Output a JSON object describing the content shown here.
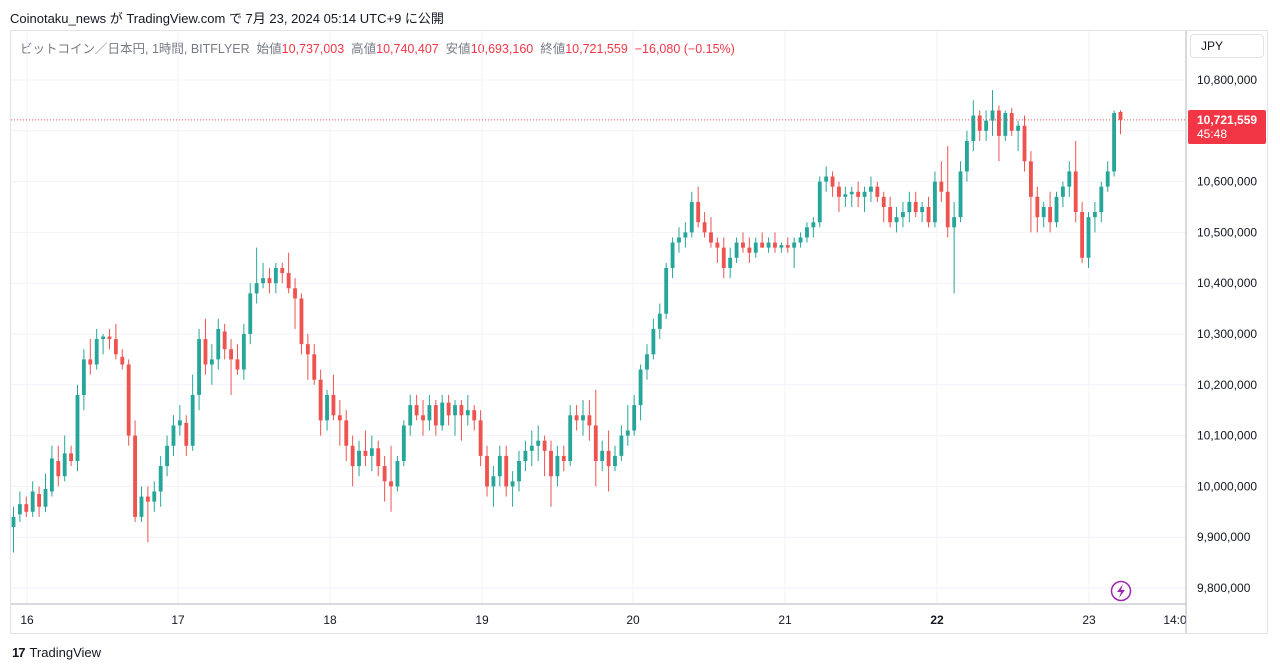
{
  "header": {
    "publish_line": "Coinotaku_news が TradingView.com で 7月 23, 2024 05:14 UTC+9 に公開"
  },
  "legend": {
    "symbol": "ビットコイン／日本円, 1時間, BITFLYER",
    "open_label": "始値",
    "open": "10,737,003",
    "high_label": "高値",
    "high": "10,740,407",
    "low_label": "安値",
    "low": "10,693,160",
    "close_label": "終値",
    "close": "10,721,559",
    "change": "−16,080 (−0.15%)"
  },
  "currency": "JPY",
  "last_price": {
    "price": "10,721,559",
    "countdown": "45:48"
  },
  "footer": {
    "logo": "17",
    "brand": "TradingView"
  },
  "colors": {
    "up": "#26a69a",
    "down": "#ef5350",
    "grid": "#f0f3fa",
    "text": "#131722",
    "accent": "#9c27b0"
  },
  "lightning_icon": "lightning-icon",
  "chart_data": {
    "type": "candlestick",
    "ylim": [
      9750000,
      10840000
    ],
    "yticks": [
      "9,800,000",
      "9,900,000",
      "10,000,000",
      "10,100,000",
      "10,200,000",
      "10,300,000",
      "10,400,000",
      "10,500,000",
      "10,600,000",
      "10,700,000",
      "10,800,000"
    ],
    "xticks": [
      "16",
      "17",
      "18",
      "19",
      "20",
      "21",
      "22",
      "23",
      "14:0"
    ],
    "last_price": 10721559,
    "candles": [
      [
        9920000,
        9960000,
        9870000,
        9940000
      ],
      [
        9945000,
        9990000,
        9930000,
        9965000
      ],
      [
        9965000,
        9980000,
        9940000,
        9950000
      ],
      [
        9950000,
        10010000,
        9940000,
        9990000
      ],
      [
        9985000,
        10000000,
        9940000,
        9960000
      ],
      [
        9960000,
        10025000,
        9950000,
        9995000
      ],
      [
        9990000,
        10080000,
        9980000,
        10055000
      ],
      [
        10050000,
        10080000,
        10000000,
        10020000
      ],
      [
        10020000,
        10100000,
        10010000,
        10065000
      ],
      [
        10065000,
        10080000,
        10040000,
        10050000
      ],
      [
        10050000,
        10200000,
        10030000,
        10180000
      ],
      [
        10180000,
        10270000,
        10150000,
        10250000
      ],
      [
        10250000,
        10290000,
        10220000,
        10240000
      ],
      [
        10240000,
        10310000,
        10230000,
        10290000
      ],
      [
        10290000,
        10300000,
        10260000,
        10295000
      ],
      [
        10295000,
        10310000,
        10270000,
        10290000
      ],
      [
        10290000,
        10320000,
        10250000,
        10260000
      ],
      [
        10255000,
        10270000,
        10230000,
        10240000
      ],
      [
        10240000,
        10250000,
        10080000,
        10100000
      ],
      [
        10100000,
        10130000,
        9930000,
        9940000
      ],
      [
        9940000,
        10000000,
        9930000,
        9980000
      ],
      [
        9980000,
        10000000,
        9890000,
        9970000
      ],
      [
        9970000,
        10010000,
        9950000,
        9990000
      ],
      [
        9990000,
        10060000,
        9960000,
        10040000
      ],
      [
        10040000,
        10100000,
        10020000,
        10080000
      ],
      [
        10080000,
        10140000,
        10060000,
        10120000
      ],
      [
        10120000,
        10160000,
        10100000,
        10130000
      ],
      [
        10125000,
        10140000,
        10060000,
        10080000
      ],
      [
        10080000,
        10220000,
        10070000,
        10180000
      ],
      [
        10180000,
        10310000,
        10150000,
        10290000
      ],
      [
        10290000,
        10330000,
        10220000,
        10240000
      ],
      [
        10240000,
        10280000,
        10200000,
        10250000
      ],
      [
        10250000,
        10330000,
        10230000,
        10310000
      ],
      [
        10305000,
        10320000,
        10250000,
        10270000
      ],
      [
        10270000,
        10290000,
        10180000,
        10250000
      ],
      [
        10250000,
        10280000,
        10220000,
        10230000
      ],
      [
        10230000,
        10320000,
        10210000,
        10300000
      ],
      [
        10300000,
        10400000,
        10280000,
        10380000
      ],
      [
        10380000,
        10470000,
        10360000,
        10400000
      ],
      [
        10400000,
        10440000,
        10390000,
        10410000
      ],
      [
        10410000,
        10430000,
        10380000,
        10400000
      ],
      [
        10400000,
        10440000,
        10380000,
        10430000
      ],
      [
        10430000,
        10440000,
        10400000,
        10420000
      ],
      [
        10420000,
        10460000,
        10380000,
        10390000
      ],
      [
        10390000,
        10410000,
        10310000,
        10370000
      ],
      [
        10370000,
        10380000,
        10260000,
        10280000
      ],
      [
        10280000,
        10300000,
        10210000,
        10260000
      ],
      [
        10260000,
        10280000,
        10200000,
        10210000
      ],
      [
        10210000,
        10230000,
        10100000,
        10130000
      ],
      [
        10130000,
        10190000,
        10110000,
        10180000
      ],
      [
        10180000,
        10220000,
        10130000,
        10140000
      ],
      [
        10140000,
        10170000,
        10080000,
        10130000
      ],
      [
        10130000,
        10150000,
        10050000,
        10080000
      ],
      [
        10080000,
        10100000,
        10000000,
        10040000
      ],
      [
        10040000,
        10090000,
        10020000,
        10070000
      ],
      [
        10070000,
        10110000,
        10040000,
        10060000
      ],
      [
        10060000,
        10100000,
        10030000,
        10075000
      ],
      [
        10075000,
        10090000,
        10020000,
        10040000
      ],
      [
        10040000,
        10060000,
        9970000,
        10010000
      ],
      [
        10010000,
        10080000,
        9950000,
        10000000
      ],
      [
        10000000,
        10060000,
        9990000,
        10050000
      ],
      [
        10050000,
        10130000,
        10040000,
        10120000
      ],
      [
        10120000,
        10180000,
        10100000,
        10160000
      ],
      [
        10160000,
        10180000,
        10130000,
        10140000
      ],
      [
        10140000,
        10170000,
        10100000,
        10130000
      ],
      [
        10130000,
        10180000,
        10110000,
        10160000
      ],
      [
        10160000,
        10170000,
        10100000,
        10120000
      ],
      [
        10120000,
        10180000,
        10110000,
        10165000
      ],
      [
        10165000,
        10180000,
        10120000,
        10140000
      ],
      [
        10140000,
        10170000,
        10100000,
        10160000
      ],
      [
        10160000,
        10170000,
        10090000,
        10140000
      ],
      [
        10140000,
        10180000,
        10120000,
        10150000
      ],
      [
        10150000,
        10160000,
        10110000,
        10130000
      ],
      [
        10130000,
        10150000,
        10040000,
        10060000
      ],
      [
        10060000,
        10080000,
        9980000,
        10000000
      ],
      [
        10000000,
        10040000,
        9960000,
        10020000
      ],
      [
        10020000,
        10080000,
        10000000,
        10060000
      ],
      [
        10060000,
        10080000,
        9980000,
        10000000
      ],
      [
        10000000,
        10030000,
        9960000,
        10010000
      ],
      [
        10010000,
        10070000,
        9990000,
        10050000
      ],
      [
        10050000,
        10090000,
        10030000,
        10070000
      ],
      [
        10070000,
        10110000,
        10040000,
        10080000
      ],
      [
        10080000,
        10120000,
        10050000,
        10090000
      ],
      [
        10090000,
        10100000,
        10020000,
        10070000
      ],
      [
        10070000,
        10090000,
        9960000,
        10020000
      ],
      [
        10020000,
        10080000,
        10000000,
        10060000
      ],
      [
        10060000,
        10080000,
        10030000,
        10050000
      ],
      [
        10050000,
        10160000,
        10040000,
        10140000
      ],
      [
        10140000,
        10160000,
        10110000,
        10130000
      ],
      [
        10130000,
        10170000,
        10100000,
        10140000
      ],
      [
        10140000,
        10170000,
        10090000,
        10120000
      ],
      [
        10120000,
        10190000,
        10000000,
        10050000
      ],
      [
        10050000,
        10090000,
        10030000,
        10070000
      ],
      [
        10070000,
        10110000,
        9990000,
        10040000
      ],
      [
        10040000,
        10080000,
        10030000,
        10060000
      ],
      [
        10060000,
        10120000,
        10050000,
        10100000
      ],
      [
        10100000,
        10160000,
        10080000,
        10110000
      ],
      [
        10110000,
        10180000,
        10100000,
        10160000
      ],
      [
        10160000,
        10240000,
        10130000,
        10230000
      ],
      [
        10230000,
        10280000,
        10210000,
        10260000
      ],
      [
        10260000,
        10330000,
        10250000,
        10310000
      ],
      [
        10310000,
        10360000,
        10290000,
        10340000
      ],
      [
        10340000,
        10440000,
        10330000,
        10430000
      ],
      [
        10430000,
        10490000,
        10410000,
        10480000
      ],
      [
        10480000,
        10510000,
        10460000,
        10490000
      ],
      [
        10490000,
        10520000,
        10470000,
        10500000
      ],
      [
        10500000,
        10580000,
        10490000,
        10560000
      ],
      [
        10560000,
        10590000,
        10510000,
        10520000
      ],
      [
        10520000,
        10540000,
        10490000,
        10500000
      ],
      [
        10500000,
        10530000,
        10470000,
        10480000
      ],
      [
        10480000,
        10490000,
        10440000,
        10470000
      ],
      [
        10470000,
        10490000,
        10410000,
        10430000
      ],
      [
        10430000,
        10470000,
        10410000,
        10450000
      ],
      [
        10450000,
        10490000,
        10440000,
        10480000
      ],
      [
        10480000,
        10500000,
        10460000,
        10470000
      ],
      [
        10470000,
        10490000,
        10440000,
        10460000
      ],
      [
        10460000,
        10490000,
        10450000,
        10480000
      ],
      [
        10480000,
        10500000,
        10470000,
        10470000
      ],
      [
        10470000,
        10490000,
        10460000,
        10480000
      ],
      [
        10480000,
        10500000,
        10460000,
        10470000
      ],
      [
        10470000,
        10480000,
        10460000,
        10475000
      ],
      [
        10475000,
        10490000,
        10460000,
        10470000
      ],
      [
        10470000,
        10490000,
        10430000,
        10480000
      ],
      [
        10480000,
        10500000,
        10470000,
        10490000
      ],
      [
        10490000,
        10520000,
        10480000,
        10510000
      ],
      [
        10510000,
        10530000,
        10490000,
        10520000
      ],
      [
        10520000,
        10610000,
        10510000,
        10600000
      ],
      [
        10600000,
        10630000,
        10580000,
        10610000
      ],
      [
        10610000,
        10620000,
        10570000,
        10590000
      ],
      [
        10590000,
        10600000,
        10540000,
        10570000
      ],
      [
        10570000,
        10590000,
        10550000,
        10575000
      ],
      [
        10575000,
        10590000,
        10550000,
        10580000
      ],
      [
        10580000,
        10600000,
        10550000,
        10570000
      ],
      [
        10570000,
        10590000,
        10540000,
        10580000
      ],
      [
        10580000,
        10610000,
        10560000,
        10590000
      ],
      [
        10590000,
        10600000,
        10560000,
        10570000
      ],
      [
        10570000,
        10580000,
        10520000,
        10550000
      ],
      [
        10550000,
        10570000,
        10510000,
        10520000
      ],
      [
        10520000,
        10550000,
        10500000,
        10530000
      ],
      [
        10530000,
        10560000,
        10510000,
        10540000
      ],
      [
        10540000,
        10580000,
        10520000,
        10560000
      ],
      [
        10560000,
        10580000,
        10530000,
        10540000
      ],
      [
        10540000,
        10560000,
        10520000,
        10550000
      ],
      [
        10550000,
        10570000,
        10510000,
        10520000
      ],
      [
        10520000,
        10620000,
        10510000,
        10600000
      ],
      [
        10600000,
        10640000,
        10560000,
        10580000
      ],
      [
        10580000,
        10670000,
        10490000,
        10510000
      ],
      [
        10510000,
        10560000,
        10380000,
        10530000
      ],
      [
        10530000,
        10640000,
        10520000,
        10620000
      ],
      [
        10620000,
        10700000,
        10600000,
        10680000
      ],
      [
        10680000,
        10760000,
        10660000,
        10730000
      ],
      [
        10730000,
        10740000,
        10680000,
        10700000
      ],
      [
        10700000,
        10740000,
        10680000,
        10720000
      ],
      [
        10720000,
        10780000,
        10690000,
        10740000
      ],
      [
        10740000,
        10750000,
        10640000,
        10690000
      ],
      [
        10690000,
        10740000,
        10680000,
        10735000
      ],
      [
        10735000,
        10745000,
        10690000,
        10700000
      ],
      [
        10700000,
        10720000,
        10660000,
        10710000
      ],
      [
        10710000,
        10730000,
        10620000,
        10640000
      ],
      [
        10640000,
        10660000,
        10500000,
        10570000
      ],
      [
        10570000,
        10590000,
        10500000,
        10530000
      ],
      [
        10530000,
        10560000,
        10510000,
        10550000
      ],
      [
        10550000,
        10580000,
        10500000,
        10520000
      ],
      [
        10520000,
        10580000,
        10510000,
        10570000
      ],
      [
        10570000,
        10600000,
        10550000,
        10590000
      ],
      [
        10590000,
        10640000,
        10570000,
        10620000
      ],
      [
        10620000,
        10680000,
        10520000,
        10540000
      ],
      [
        10540000,
        10560000,
        10440000,
        10450000
      ],
      [
        10450000,
        10540000,
        10430000,
        10530000
      ],
      [
        10530000,
        10560000,
        10500000,
        10540000
      ],
      [
        10540000,
        10600000,
        10520000,
        10590000
      ],
      [
        10590000,
        10640000,
        10580000,
        10620000
      ],
      [
        10620000,
        10740000,
        10610000,
        10735000
      ],
      [
        10737003,
        10740407,
        10693160,
        10721559
      ]
    ]
  }
}
